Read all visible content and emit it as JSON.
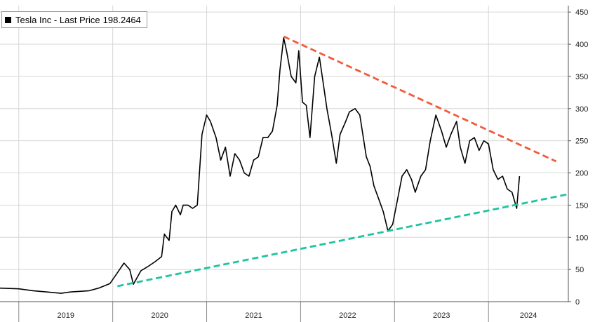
{
  "chart_data": {
    "type": "line",
    "legend": {
      "series_name": "Tesla Inc - Last Price",
      "last_value": "198.2464",
      "position": "top-left"
    },
    "y_ticks": [
      0,
      50,
      100,
      150,
      200,
      250,
      300,
      350,
      400,
      450
    ],
    "ylim": [
      0,
      460
    ],
    "y_axis_side": "right",
    "x_tick_labels": [
      "2019",
      "2020",
      "2021",
      "2022",
      "2023",
      "2024"
    ],
    "xlim": [
      2018.8,
      2024.85
    ],
    "grid": true,
    "series": [
      {
        "name": "Tesla Inc - Last Price",
        "color": "#000000",
        "x": [
          2018.8,
          2019.0,
          2019.15,
          2019.3,
          2019.45,
          2019.55,
          2019.75,
          2019.85,
          2019.97,
          2020.05,
          2020.12,
          2020.18,
          2020.22,
          2020.3,
          2020.38,
          2020.45,
          2020.52,
          2020.55,
          2020.6,
          2020.63,
          2020.67,
          2020.72,
          2020.75,
          2020.8,
          2020.85,
          2020.9,
          2020.95,
          2021.0,
          2021.04,
          2021.1,
          2021.15,
          2021.2,
          2021.25,
          2021.3,
          2021.35,
          2021.4,
          2021.45,
          2021.5,
          2021.55,
          2021.6,
          2021.65,
          2021.7,
          2021.75,
          2021.78,
          2021.82,
          2021.85,
          2021.9,
          2021.95,
          2021.98,
          2022.02,
          2022.06,
          2022.1,
          2022.15,
          2022.2,
          2022.24,
          2022.28,
          2022.33,
          2022.38,
          2022.42,
          2022.48,
          2022.52,
          2022.58,
          2022.63,
          2022.7,
          2022.74,
          2022.78,
          2022.83,
          2022.88,
          2022.93,
          2022.98,
          2023.04,
          2023.08,
          2023.13,
          2023.18,
          2023.22,
          2023.28,
          2023.33,
          2023.38,
          2023.44,
          2023.5,
          2023.55,
          2023.6,
          2023.66,
          2023.7,
          2023.75,
          2023.8,
          2023.85,
          2023.9,
          2023.95,
          2024.0,
          2024.05,
          2024.1,
          2024.15,
          2024.2,
          2024.25,
          2024.3,
          2024.33
        ],
        "values": [
          21,
          20,
          17,
          15,
          13,
          15,
          17,
          21,
          28,
          45,
          60,
          50,
          27,
          48,
          55,
          62,
          70,
          105,
          95,
          140,
          150,
          135,
          150,
          150,
          145,
          150,
          260,
          290,
          280,
          255,
          220,
          240,
          195,
          230,
          220,
          200,
          195,
          220,
          225,
          255,
          255,
          265,
          305,
          360,
          410,
          390,
          350,
          340,
          390,
          310,
          305,
          255,
          350,
          380,
          340,
          300,
          260,
          215,
          260,
          280,
          295,
          300,
          290,
          225,
          210,
          180,
          160,
          140,
          110,
          120,
          165,
          195,
          205,
          190,
          170,
          195,
          205,
          250,
          290,
          265,
          240,
          260,
          280,
          240,
          215,
          250,
          255,
          235,
          250,
          245,
          205,
          190,
          195,
          175,
          170,
          145,
          195
        ]
      }
    ],
    "trendlines": [
      {
        "color": "#f25a3c",
        "style": "dashed",
        "x": [
          2021.82,
          2024.72
        ],
        "values": [
          412,
          218
        ]
      },
      {
        "color": "#1fc3a0",
        "style": "dashed",
        "x": [
          2020.05,
          2024.85
        ],
        "values": [
          24,
          167
        ]
      }
    ]
  }
}
